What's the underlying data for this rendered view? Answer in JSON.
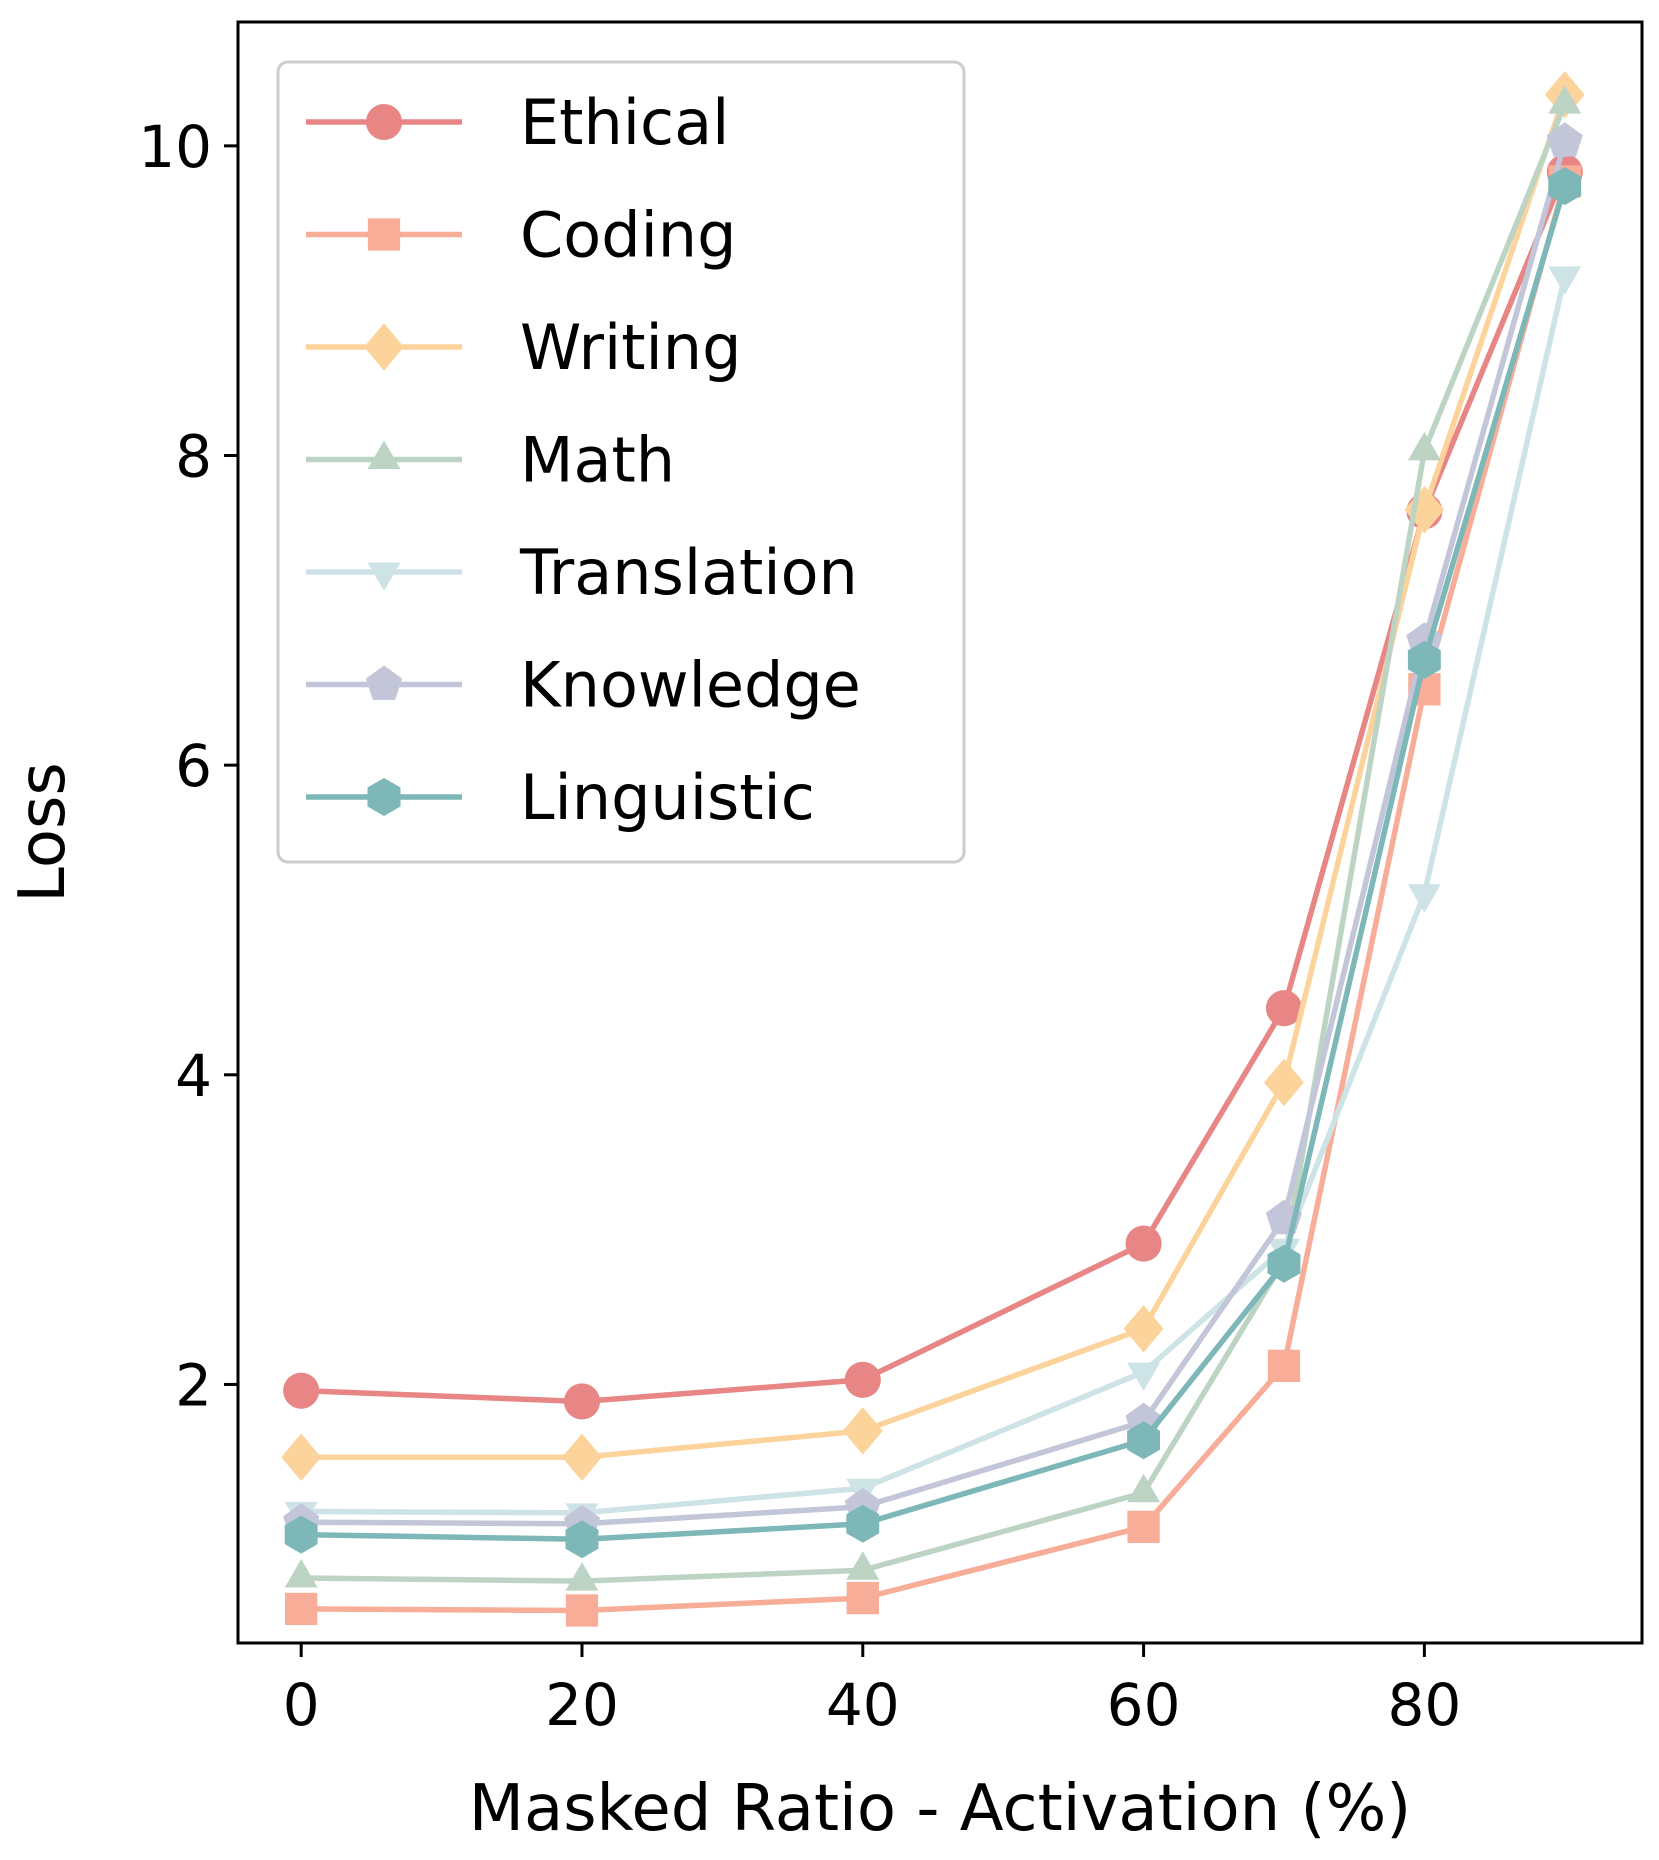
{
  "chart_data": {
    "type": "line",
    "title": "",
    "xlabel": "Masked Ratio - Activation (%)",
    "ylabel": "Loss",
    "x": [
      0,
      20,
      40,
      60,
      70,
      80,
      90
    ],
    "xticks": [
      "0",
      "20",
      "40",
      "60",
      "80"
    ],
    "yticks": [
      "2",
      "4",
      "6",
      "8",
      "10"
    ],
    "xlim": [
      -4.5,
      95.5
    ],
    "ylim": [
      0.33,
      10.8
    ],
    "grid": false,
    "legend_position": "top-left",
    "series": [
      {
        "name": "Ethical",
        "color": "#E88585",
        "marker": "circle",
        "values": [
          1.96,
          1.89,
          2.03,
          2.91,
          4.43,
          7.64,
          9.83
        ]
      },
      {
        "name": "Coding",
        "color": "#F7AD98",
        "marker": "square",
        "values": [
          0.55,
          0.54,
          0.62,
          1.08,
          2.12,
          6.49,
          9.77
        ]
      },
      {
        "name": "Writing",
        "color": "#FDD39C",
        "marker": "diamond",
        "values": [
          1.53,
          1.53,
          1.7,
          2.36,
          3.95,
          7.65,
          10.33
        ]
      },
      {
        "name": "Math",
        "color": "#BDD4C4",
        "marker": "triangle-up",
        "values": [
          0.75,
          0.73,
          0.8,
          1.3,
          2.8,
          8.03,
          10.27
        ]
      },
      {
        "name": "Translation",
        "color": "#CDE3E5",
        "marker": "triangle-down",
        "values": [
          1.18,
          1.17,
          1.33,
          2.08,
          2.88,
          5.17,
          9.16
        ]
      },
      {
        "name": "Knowledge",
        "color": "#C3C5D9",
        "marker": "pentagon",
        "values": [
          1.11,
          1.1,
          1.21,
          1.76,
          3.07,
          6.8,
          10.03
        ]
      },
      {
        "name": "Linguistic",
        "color": "#7DB7B8",
        "marker": "hexagon",
        "values": [
          1.03,
          1.0,
          1.1,
          1.64,
          2.78,
          6.68,
          9.74
        ]
      }
    ]
  }
}
